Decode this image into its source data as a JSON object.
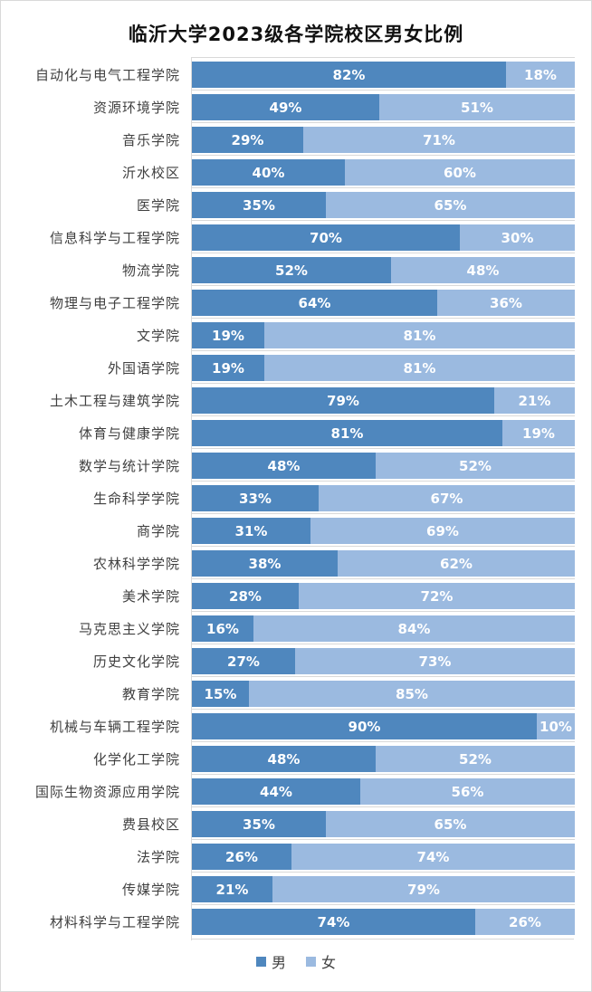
{
  "chart_data": {
    "type": "bar",
    "orientation": "horizontal",
    "stacked": "100%",
    "title": "临沂大学2023级各学院校区男女比例",
    "xlabel": "",
    "ylabel": "",
    "xlim": [
      0,
      100
    ],
    "grid": true,
    "legend_position": "bottom",
    "categories": [
      "自动化与电气工程学院",
      "资源环境学院",
      "音乐学院",
      "沂水校区",
      "医学院",
      "信息科学与工程学院",
      "物流学院",
      "物理与电子工程学院",
      "文学院",
      "外国语学院",
      "土木工程与建筑学院",
      "体育与健康学院",
      "数学与统计学院",
      "生命科学学院",
      "商学院",
      "农林科学学院",
      "美术学院",
      "马克思主义学院",
      "历史文化学院",
      "教育学院",
      "机械与车辆工程学院",
      "化学化工学院",
      "国际生物资源应用学院",
      "费县校区",
      "法学院",
      "传媒学院",
      "材料科学与工程学院"
    ],
    "series": [
      {
        "name": "男",
        "color": "#4f87be",
        "values": [
          82,
          49,
          29,
          40,
          35,
          70,
          52,
          64,
          19,
          19,
          79,
          81,
          48,
          33,
          31,
          38,
          28,
          16,
          27,
          15,
          90,
          48,
          44,
          35,
          26,
          21,
          74
        ]
      },
      {
        "name": "女",
        "color": "#9bbae0",
        "values": [
          18,
          51,
          71,
          60,
          65,
          30,
          48,
          36,
          81,
          81,
          21,
          19,
          52,
          67,
          69,
          62,
          72,
          84,
          73,
          85,
          10,
          52,
          56,
          65,
          74,
          79,
          26
        ]
      }
    ]
  },
  "legend": [
    {
      "label": "男",
      "color": "#4f87be"
    },
    {
      "label": "女",
      "color": "#9bbae0"
    }
  ]
}
